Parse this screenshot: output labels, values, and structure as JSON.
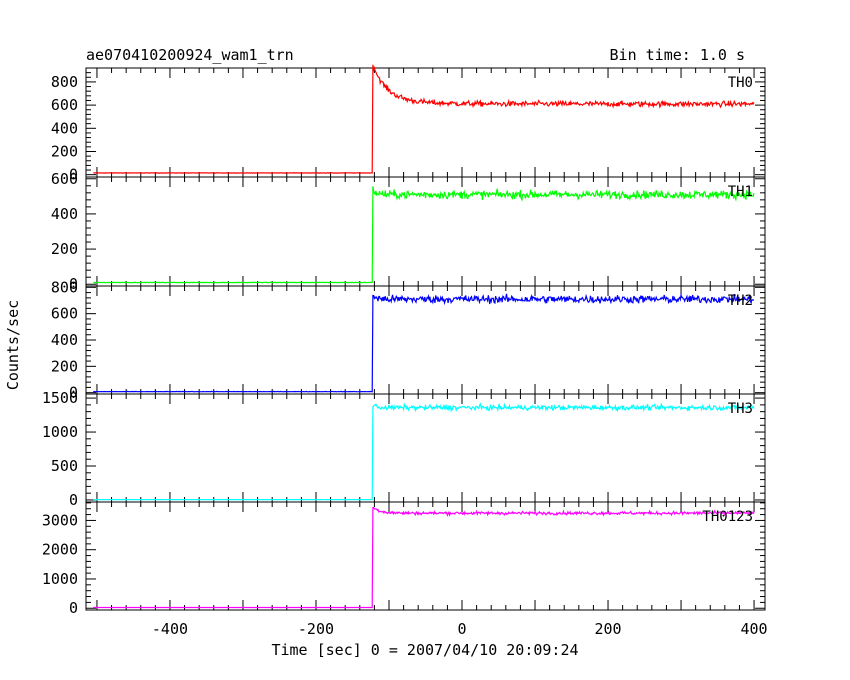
{
  "header": {
    "title": "ae070410200924_wam1_trn",
    "bin_time": "Bin time: 1.0 s"
  },
  "chart_data": {
    "type": "line",
    "xlabel": "Time [sec] 0 = 2007/04/10 20:09:24",
    "ylabel": "Counts/sec",
    "xlim": [
      -515,
      415
    ],
    "xticks": [
      -400,
      -200,
      0,
      200,
      400
    ],
    "onset_time": -122,
    "panels": [
      {
        "name": "TH0",
        "color": "#ff0000",
        "ylim": [
          -20,
          920
        ],
        "yticks": [
          0,
          200,
          400,
          600,
          800
        ],
        "pre_level": 15,
        "peak": 890,
        "plateau": 610,
        "decay_tau": 18,
        "noise": 22
      },
      {
        "name": "TH1",
        "color": "#00ff00",
        "ylim": [
          -10,
          610
        ],
        "yticks": [
          0,
          200,
          400,
          600
        ],
        "pre_level": 10,
        "peak": 540,
        "plateau": 510,
        "decay_tau": 5,
        "noise": 22
      },
      {
        "name": "TH2",
        "color": "#0000ff",
        "ylim": [
          -10,
          810
        ],
        "yticks": [
          0,
          200,
          400,
          600,
          800
        ],
        "pre_level": 8,
        "peak": 740,
        "plateau": 710,
        "decay_tau": 5,
        "noise": 28
      },
      {
        "name": "TH3",
        "color": "#00ffff",
        "ylim": [
          -30,
          1560
        ],
        "yticks": [
          0,
          500,
          1000,
          1500
        ],
        "pre_level": 5,
        "peak": 1400,
        "plateau": 1360,
        "decay_tau": 5,
        "noise": 35
      },
      {
        "name": "TH0123",
        "color": "#ff00ff",
        "ylim": [
          -60,
          3630
        ],
        "yticks": [
          0,
          1000,
          2000,
          3000
        ],
        "pre_level": 25,
        "peak": 3450,
        "plateau": 3250,
        "decay_tau": 10,
        "noise": 50
      }
    ]
  }
}
